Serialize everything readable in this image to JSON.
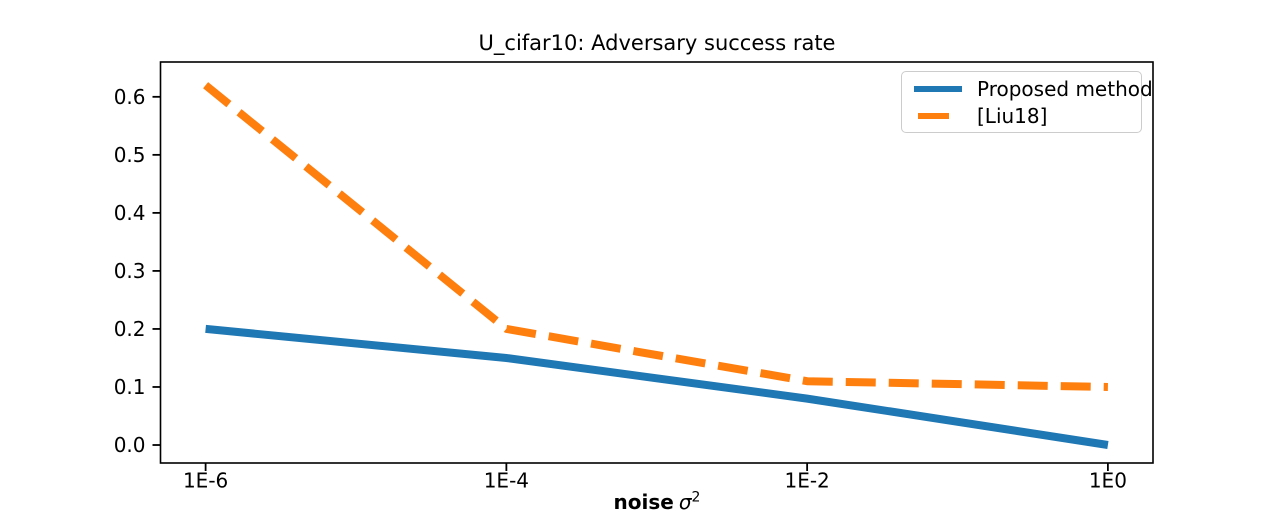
{
  "figure": {
    "background": "#ffffff"
  },
  "chart_data": {
    "type": "line",
    "title": "U_cifar10: Adversary success rate",
    "xlabel": "noise σ²",
    "xlabel_parts": {
      "word": "noise",
      "symbol": "σ",
      "exponent": "2"
    },
    "ylabel": "",
    "x_scale": "log",
    "x": [
      1e-06,
      0.0001,
      0.01,
      1
    ],
    "x_tick_labels": [
      "1E-6",
      "1E-4",
      "1E-2",
      "1E0"
    ],
    "y_ticks": [
      0.0,
      0.1,
      0.2,
      0.3,
      0.4,
      0.5,
      0.6
    ],
    "y_tick_labels": [
      "0.0",
      "0.1",
      "0.2",
      "0.3",
      "0.4",
      "0.5",
      "0.6"
    ],
    "xlim_log10": [
      -6.3,
      0.3
    ],
    "ylim": [
      -0.031,
      0.66
    ],
    "grid": false,
    "axis_color": "#000000",
    "legend_position": "upper right",
    "series": [
      {
        "name": "Proposed method",
        "color": "#1f77b4",
        "line_style": "solid",
        "line_width": 8,
        "values": [
          0.2,
          0.15,
          0.08,
          0.0
        ]
      },
      {
        "name": "[Liu18]",
        "color": "#ff7f0e",
        "line_style": "dashed",
        "line_width": 8,
        "values": [
          0.62,
          0.2,
          0.11,
          0.1
        ]
      }
    ]
  }
}
